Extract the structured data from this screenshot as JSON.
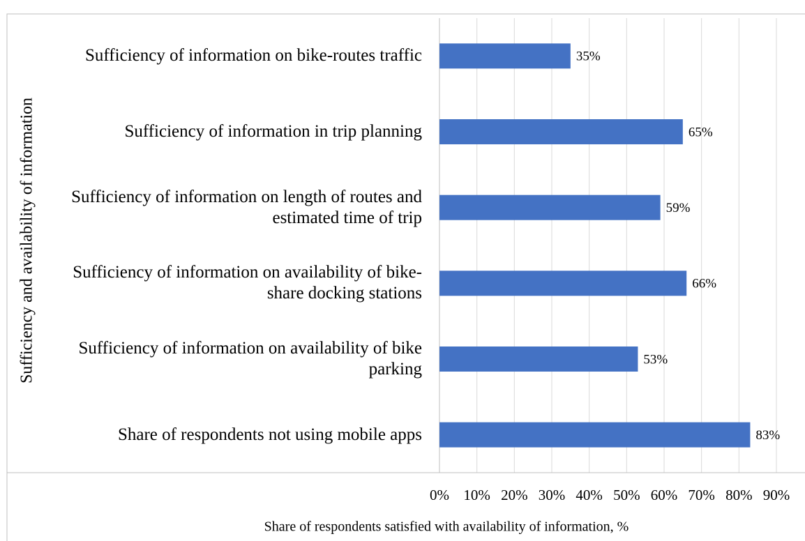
{
  "chart_data": {
    "type": "bar",
    "orientation": "horizontal",
    "ylabel": "Sufficiency and availability of information",
    "xlabel": "Share of respondents satisfied with availability of information, %",
    "categories": [
      "Sufficiency of information on bike-routes traffic",
      "Sufficiency of information in trip planning",
      "Sufficiency of information on length of routes and estimated time of trip",
      "Sufficiency of information on availability of bike-share docking stations",
      "Sufficiency of information on availability of bike parking",
      "Share of respondents not using mobile apps"
    ],
    "values": [
      35,
      65,
      59,
      66,
      53,
      83
    ],
    "value_labels": [
      "35%",
      "65%",
      "59%",
      "66%",
      "53%",
      "83%"
    ],
    "color": "#4472c4",
    "xlim": [
      0,
      90
    ],
    "xticks": [
      {
        "value": 0,
        "label": "0%"
      },
      {
        "value": 10,
        "label": "10%"
      },
      {
        "value": 20,
        "label": "20%"
      },
      {
        "value": 30,
        "label": "30%"
      },
      {
        "value": 40,
        "label": "40%"
      },
      {
        "value": 50,
        "label": "50%"
      },
      {
        "value": 60,
        "label": "60%"
      },
      {
        "value": 70,
        "label": "70%"
      },
      {
        "value": 80,
        "label": "80%"
      },
      {
        "value": 90,
        "label": "90%"
      }
    ],
    "grid": true
  }
}
